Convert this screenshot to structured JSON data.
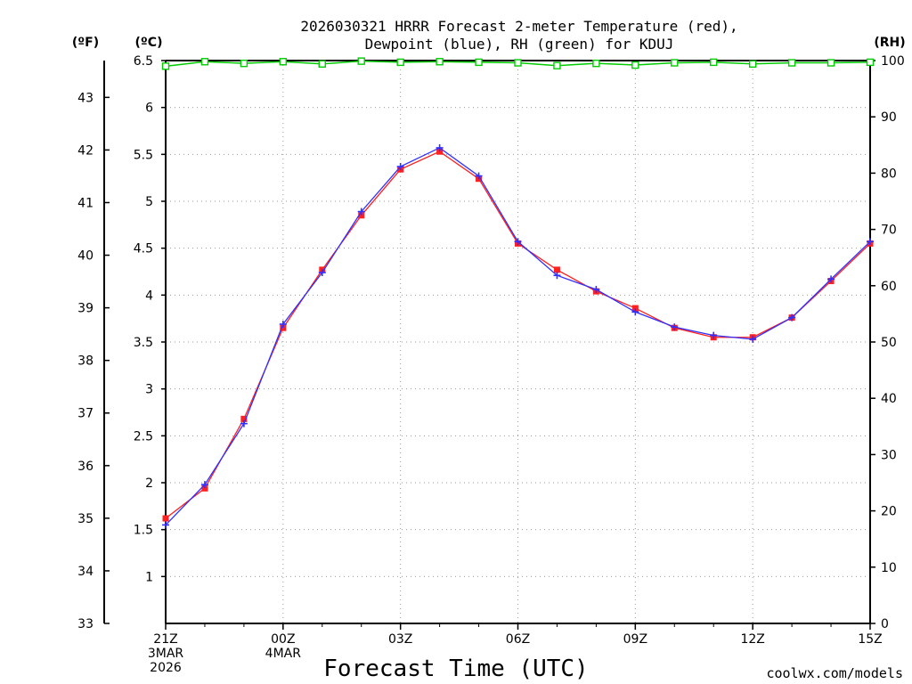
{
  "chart_data": {
    "type": "line",
    "title_lines": [
      "2026030321 HRRR Forecast 2-meter Temperature (red),",
      "Dewpoint (blue), RH (green) for KDUJ"
    ],
    "xlabel": "Forecast Time (UTC)",
    "credit": "coolwx.com/models",
    "unit_labels": {
      "fahrenheit": "(ºF)",
      "celsius": "(ºC)",
      "rh": "(RH)"
    },
    "x_count": 19,
    "x_ticks": [
      {
        "index": 0,
        "lines": [
          "21Z",
          "3MAR",
          "2026"
        ]
      },
      {
        "index": 3,
        "lines": [
          "00Z",
          "4MAR"
        ]
      },
      {
        "index": 6,
        "lines": [
          "03Z"
        ]
      },
      {
        "index": 9,
        "lines": [
          "06Z"
        ]
      },
      {
        "index": 12,
        "lines": [
          "09Z"
        ]
      },
      {
        "index": 15,
        "lines": [
          "12Z"
        ]
      },
      {
        "index": 18,
        "lines": [
          "15Z"
        ]
      }
    ],
    "celsius_axis": {
      "range": [
        0.5,
        6.5
      ],
      "ticks": [
        1,
        1.5,
        2,
        2.5,
        3,
        3.5,
        4,
        4.5,
        5,
        5.5,
        6,
        6.5
      ]
    },
    "fahrenheit_axis": {
      "range": [
        33,
        43.7
      ],
      "ticks": [
        33,
        34,
        35,
        36,
        37,
        38,
        39,
        40,
        41,
        42,
        43
      ]
    },
    "rh_axis": {
      "range": [
        0,
        100
      ],
      "ticks": [
        0,
        10,
        20,
        30,
        40,
        50,
        60,
        70,
        80,
        90,
        100
      ]
    },
    "grid": true,
    "series": [
      {
        "name": "Temperature",
        "units": "C",
        "color": "#ff2020",
        "values": [
          1.62,
          1.94,
          2.68,
          3.65,
          4.27,
          4.85,
          5.34,
          5.53,
          5.24,
          4.55,
          4.27,
          4.04,
          3.86,
          3.65,
          3.55,
          3.55,
          3.76,
          4.15,
          4.55
        ]
      },
      {
        "name": "Dewpoint",
        "units": "C",
        "color": "#3030ff",
        "values": [
          1.55,
          1.98,
          2.63,
          3.69,
          4.24,
          4.89,
          5.37,
          5.57,
          5.27,
          4.57,
          4.21,
          4.06,
          3.82,
          3.66,
          3.57,
          3.53,
          3.76,
          4.17,
          4.57
        ]
      },
      {
        "name": "RH",
        "units": "%",
        "color": "#00cc00",
        "values": [
          99.0,
          99.8,
          99.5,
          99.8,
          99.4,
          99.9,
          99.7,
          99.8,
          99.7,
          99.6,
          99.1,
          99.5,
          99.2,
          99.6,
          99.7,
          99.4,
          99.6,
          99.6,
          99.7
        ]
      }
    ]
  }
}
